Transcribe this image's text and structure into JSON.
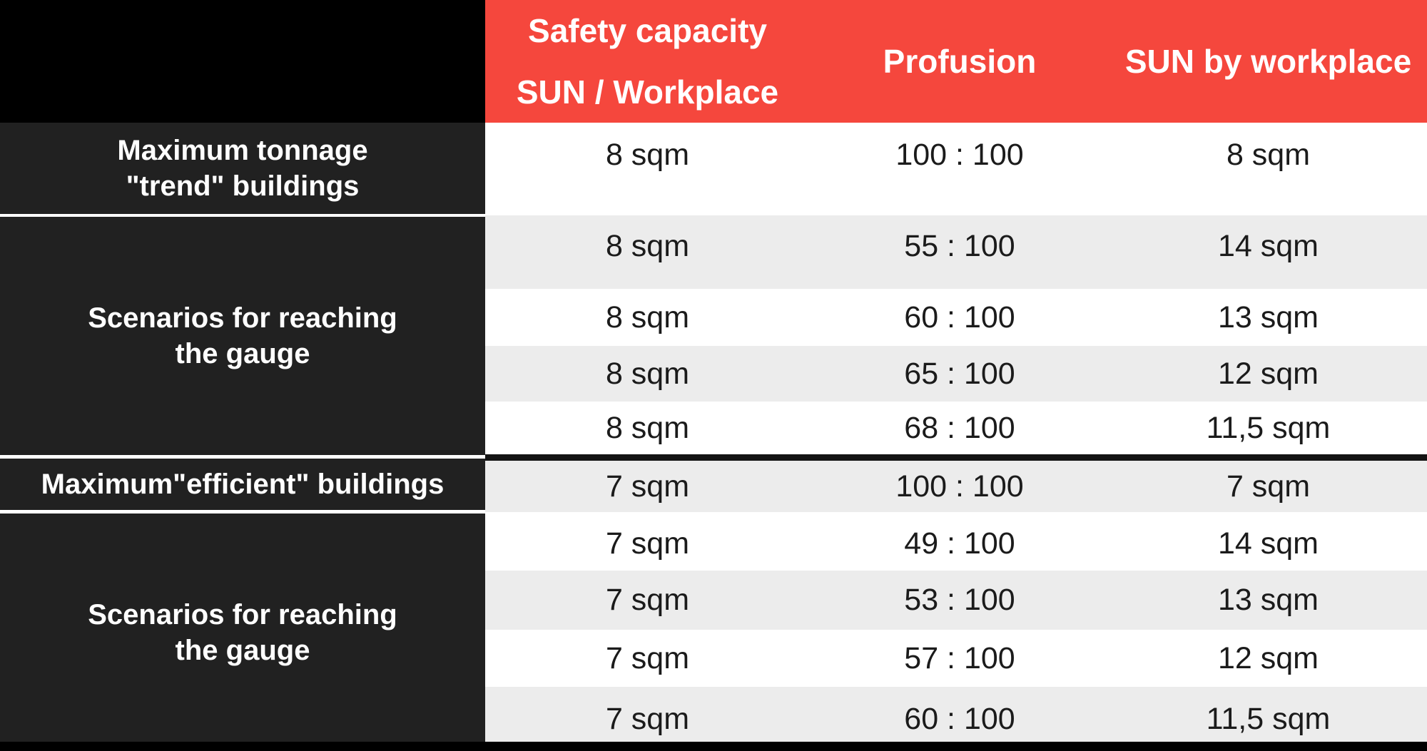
{
  "colors": {
    "header_red": "#F5473D",
    "row_white": "#FFFFFF",
    "row_alt_gray": "#ECECEC",
    "label_cell_dark": "#212121",
    "corner_black": "#000000",
    "data_text": "#1B1B1B",
    "header_text": "#FFFFFF",
    "section_divider_dark": "#141414",
    "label_divider_white": "#FFFFFF"
  },
  "table": {
    "header": {
      "capacity_line1": "Safety capacity",
      "capacity_line2": "SUN / Workplace",
      "profusion": "Profusion",
      "sun_by_workplace": "SUN by workplace"
    },
    "row_labels": [
      "Maximum tonnage\n\"trend\" buildings",
      "Scenarios for reaching\nthe gauge",
      "Maximum\"efficient\" buildings",
      "Scenarios for reaching\nthe gauge"
    ],
    "rows": [
      {
        "capacity": "8 sqm",
        "profusion": "100 : 100",
        "sun": "8 sqm"
      },
      {
        "capacity": "8 sqm",
        "profusion": "55 : 100",
        "sun": "14 sqm"
      },
      {
        "capacity": "8 sqm",
        "profusion": "60 : 100",
        "sun": "13 sqm"
      },
      {
        "capacity": "8 sqm",
        "profusion": "65 : 100",
        "sun": "12 sqm"
      },
      {
        "capacity": "8 sqm",
        "profusion": "68 : 100",
        "sun": "11,5 sqm"
      },
      {
        "capacity": "7 sqm",
        "profusion": "100 : 100",
        "sun": "7 sqm"
      },
      {
        "capacity": "7 sqm",
        "profusion": "49 : 100",
        "sun": "14 sqm"
      },
      {
        "capacity": "7 sqm",
        "profusion": "53 : 100",
        "sun": "13 sqm"
      },
      {
        "capacity": "7 sqm",
        "profusion": "57 : 100",
        "sun": "12 sqm"
      },
      {
        "capacity": "7 sqm",
        "profusion": "60 : 100",
        "sun": "11,5 sqm"
      }
    ]
  }
}
